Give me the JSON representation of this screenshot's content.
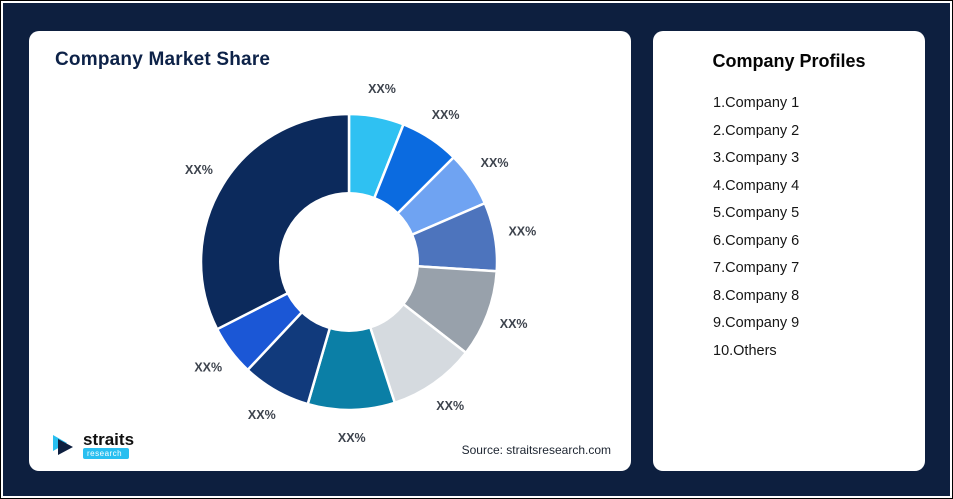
{
  "left_card": {
    "title": "Company Market Share",
    "source": "Source: straitsresearch.com"
  },
  "logo": {
    "name": "straits",
    "sub": "research"
  },
  "profiles": {
    "title": "Company Profiles",
    "items": [
      "1.Company 1",
      "2.Company 2",
      "3.Company 3",
      "4.Company 4",
      "5.Company 5",
      "6.Company 6",
      "7.Company 7",
      "8.Company 8",
      "9.Company 9",
      "10.Others"
    ]
  },
  "chart_data": {
    "type": "pie",
    "subtype": "donut",
    "title": "Company Market Share",
    "legend_position": "none",
    "value_labels_masked": true,
    "segments": [
      {
        "name": "segment-1",
        "label": "XX%",
        "value": 6.0,
        "color": "#2fc1f2"
      },
      {
        "name": "segment-2",
        "label": "XX%",
        "value": 6.5,
        "color": "#0b6be0"
      },
      {
        "name": "segment-3",
        "label": "XX%",
        "value": 6.0,
        "color": "#6fa3f2"
      },
      {
        "name": "segment-4",
        "label": "XX%",
        "value": 7.5,
        "color": "#4d74bd"
      },
      {
        "name": "segment-5",
        "label": "XX%",
        "value": 9.5,
        "color": "#98a1ab"
      },
      {
        "name": "segment-6",
        "label": "XX%",
        "value": 9.5,
        "color": "#d5dadf"
      },
      {
        "name": "segment-7",
        "label": "XX%",
        "value": 9.5,
        "color": "#0b7fa6"
      },
      {
        "name": "segment-8",
        "label": "XX%",
        "value": 7.5,
        "color": "#113a7c"
      },
      {
        "name": "segment-9",
        "label": "XX%",
        "value": 5.5,
        "color": "#1b57d6"
      },
      {
        "name": "segment-10",
        "label": "XX%",
        "value": 32.5,
        "color": "#0c2a5c"
      }
    ]
  }
}
